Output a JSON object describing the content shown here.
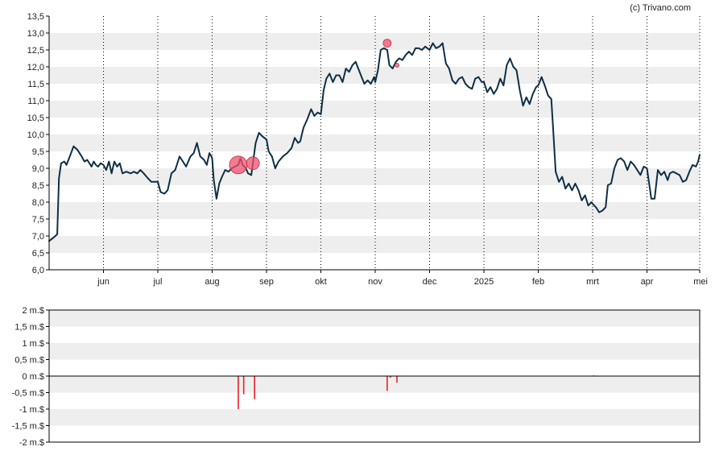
{
  "credit": "(c) Trivano.com",
  "colors": {
    "line": "#0e2f44",
    "band": "#eeeeee",
    "marker": "#f0506e",
    "volume_bar": "#e8202a",
    "frame": "#000000",
    "vgrid": "#000000"
  },
  "chart_data": [
    {
      "type": "line",
      "x_tick_labels": [
        "jun",
        "jul",
        "aug",
        "sep",
        "okt",
        "nov",
        "dec",
        "2025",
        "feb",
        "mrt",
        "apr",
        "mei"
      ],
      "x_tick_pos": [
        1.0,
        2.0,
        3.0,
        4.0,
        5.0,
        6.0,
        7.0,
        8.0,
        9.0,
        10.0,
        11.0,
        11.97
      ],
      "y_tick_labels": [
        "6,0",
        "6,5",
        "7,0",
        "7,5",
        "8,0",
        "8,5",
        "9,0",
        "9,5",
        "10,0",
        "10,5",
        "11,0",
        "11,5",
        "12,0",
        "12,5",
        "13,0",
        "13,5"
      ],
      "ylim": [
        6.0,
        13.5
      ],
      "xlim": [
        0.0,
        11.97
      ],
      "grid": "horizontal bands, dotted vertical lines at month ticks",
      "series": [
        {
          "points": [
            [
              0.0,
              6.85
            ],
            [
              0.08,
              6.95
            ],
            [
              0.15,
              7.05
            ],
            [
              0.18,
              8.7
            ],
            [
              0.22,
              9.15
            ],
            [
              0.28,
              9.2
            ],
            [
              0.32,
              9.1
            ],
            [
              0.38,
              9.35
            ],
            [
              0.45,
              9.65
            ],
            [
              0.52,
              9.55
            ],
            [
              0.6,
              9.35
            ],
            [
              0.65,
              9.2
            ],
            [
              0.7,
              9.25
            ],
            [
              0.78,
              9.05
            ],
            [
              0.82,
              9.2
            ],
            [
              0.86,
              9.1
            ],
            [
              0.9,
              9.05
            ],
            [
              0.95,
              9.15
            ],
            [
              1.0,
              9.1
            ],
            [
              1.05,
              8.95
            ],
            [
              1.1,
              9.2
            ],
            [
              1.15,
              8.85
            ],
            [
              1.2,
              9.2
            ],
            [
              1.25,
              9.05
            ],
            [
              1.3,
              9.15
            ],
            [
              1.35,
              8.85
            ],
            [
              1.42,
              8.9
            ],
            [
              1.5,
              8.85
            ],
            [
              1.56,
              8.9
            ],
            [
              1.62,
              8.85
            ],
            [
              1.68,
              8.95
            ],
            [
              1.74,
              8.85
            ],
            [
              1.82,
              8.7
            ],
            [
              1.88,
              8.6
            ],
            [
              1.95,
              8.6
            ],
            [
              2.0,
              8.6
            ],
            [
              2.05,
              8.3
            ],
            [
              2.12,
              8.25
            ],
            [
              2.18,
              8.35
            ],
            [
              2.25,
              8.85
            ],
            [
              2.32,
              8.95
            ],
            [
              2.4,
              9.35
            ],
            [
              2.46,
              9.2
            ],
            [
              2.52,
              9.05
            ],
            [
              2.6,
              9.35
            ],
            [
              2.66,
              9.45
            ],
            [
              2.72,
              9.75
            ],
            [
              2.78,
              9.35
            ],
            [
              2.85,
              9.25
            ],
            [
              2.9,
              9.1
            ],
            [
              2.95,
              9.45
            ],
            [
              3.0,
              9.3
            ],
            [
              3.03,
              8.65
            ],
            [
              3.08,
              8.1
            ],
            [
              3.13,
              8.55
            ],
            [
              3.18,
              8.75
            ],
            [
              3.24,
              8.95
            ],
            [
              3.3,
              8.9
            ],
            [
              3.36,
              9.0
            ],
            [
              3.42,
              9.05
            ],
            [
              3.48,
              9.1
            ],
            [
              3.52,
              9.3
            ],
            [
              3.56,
              9.1
            ],
            [
              3.62,
              9.0
            ],
            [
              3.66,
              8.85
            ],
            [
              3.72,
              8.8
            ],
            [
              3.8,
              9.75
            ],
            [
              3.86,
              10.05
            ],
            [
              3.92,
              9.95
            ],
            [
              4.0,
              9.85
            ],
            [
              4.04,
              9.5
            ],
            [
              4.1,
              9.35
            ],
            [
              4.16,
              9.0
            ],
            [
              4.22,
              9.2
            ],
            [
              4.3,
              9.35
            ],
            [
              4.38,
              9.45
            ],
            [
              4.46,
              9.6
            ],
            [
              4.52,
              9.9
            ],
            [
              4.58,
              9.75
            ],
            [
              4.62,
              9.8
            ],
            [
              4.68,
              10.2
            ],
            [
              4.75,
              10.45
            ],
            [
              4.82,
              10.75
            ],
            [
              4.88,
              10.55
            ],
            [
              4.94,
              10.65
            ],
            [
              5.0,
              10.6
            ],
            [
              5.05,
              11.3
            ],
            [
              5.1,
              11.65
            ],
            [
              5.16,
              11.8
            ],
            [
              5.22,
              11.55
            ],
            [
              5.28,
              11.75
            ],
            [
              5.34,
              11.75
            ],
            [
              5.4,
              11.55
            ],
            [
              5.46,
              11.95
            ],
            [
              5.52,
              11.85
            ],
            [
              5.58,
              12.05
            ],
            [
              5.64,
              12.15
            ],
            [
              5.7,
              11.9
            ],
            [
              5.75,
              11.7
            ],
            [
              5.8,
              11.5
            ],
            [
              5.86,
              11.6
            ],
            [
              5.92,
              11.5
            ],
            [
              5.98,
              11.7
            ],
            [
              6.0,
              11.55
            ],
            [
              6.05,
              11.9
            ],
            [
              6.1,
              12.5
            ],
            [
              6.16,
              12.55
            ],
            [
              6.22,
              12.5
            ],
            [
              6.26,
              12.05
            ],
            [
              6.32,
              11.95
            ],
            [
              6.38,
              12.15
            ],
            [
              6.44,
              12.25
            ],
            [
              6.5,
              12.2
            ],
            [
              6.56,
              12.35
            ],
            [
              6.62,
              12.45
            ],
            [
              6.68,
              12.35
            ],
            [
              6.74,
              12.55
            ],
            [
              6.8,
              12.55
            ],
            [
              6.86,
              12.5
            ],
            [
              6.92,
              12.6
            ],
            [
              7.0,
              12.5
            ],
            [
              7.06,
              12.7
            ],
            [
              7.12,
              12.55
            ],
            [
              7.18,
              12.6
            ],
            [
              7.24,
              12.7
            ],
            [
              7.3,
              12.1
            ],
            [
              7.36,
              11.95
            ],
            [
              7.42,
              11.6
            ],
            [
              7.48,
              11.5
            ],
            [
              7.54,
              11.65
            ],
            [
              7.6,
              11.7
            ],
            [
              7.66,
              11.5
            ],
            [
              7.72,
              11.4
            ],
            [
              7.78,
              11.35
            ],
            [
              7.84,
              11.65
            ],
            [
              7.9,
              11.7
            ],
            [
              7.96,
              11.55
            ],
            [
              8.0,
              11.55
            ],
            [
              8.06,
              11.25
            ],
            [
              8.12,
              11.4
            ],
            [
              8.18,
              11.2
            ],
            [
              8.24,
              11.35
            ],
            [
              8.3,
              11.65
            ],
            [
              8.36,
              11.45
            ],
            [
              8.42,
              12.05
            ],
            [
              8.48,
              12.25
            ],
            [
              8.54,
              12.0
            ],
            [
              8.6,
              11.9
            ],
            [
              8.66,
              11.3
            ],
            [
              8.72,
              10.85
            ],
            [
              8.78,
              11.1
            ],
            [
              8.84,
              10.9
            ],
            [
              8.9,
              11.2
            ],
            [
              8.96,
              11.4
            ],
            [
              9.0,
              11.45
            ],
            [
              9.06,
              11.7
            ],
            [
              9.12,
              11.45
            ],
            [
              9.18,
              11.15
            ],
            [
              9.24,
              11.05
            ],
            [
              9.28,
              10.0
            ],
            [
              9.32,
              8.9
            ],
            [
              9.38,
              8.6
            ],
            [
              9.44,
              8.75
            ],
            [
              9.5,
              8.4
            ],
            [
              9.56,
              8.55
            ],
            [
              9.62,
              8.35
            ],
            [
              9.68,
              8.55
            ],
            [
              9.74,
              8.35
            ],
            [
              9.8,
              8.05
            ],
            [
              9.86,
              8.2
            ],
            [
              9.92,
              7.9
            ],
            [
              9.98,
              8.0
            ],
            [
              10.0,
              7.95
            ],
            [
              10.06,
              7.85
            ],
            [
              10.12,
              7.7
            ],
            [
              10.18,
              7.75
            ],
            [
              10.24,
              7.85
            ],
            [
              10.28,
              8.5
            ],
            [
              10.34,
              8.55
            ],
            [
              10.4,
              9.0
            ],
            [
              10.46,
              9.25
            ],
            [
              10.52,
              9.3
            ],
            [
              10.58,
              9.2
            ],
            [
              10.64,
              8.95
            ],
            [
              10.7,
              9.2
            ],
            [
              10.76,
              9.1
            ],
            [
              10.82,
              8.95
            ],
            [
              10.88,
              8.8
            ],
            [
              10.94,
              9.05
            ],
            [
              11.0,
              9.0
            ],
            [
              11.04,
              8.55
            ],
            [
              11.08,
              8.1
            ],
            [
              11.14,
              8.1
            ],
            [
              11.2,
              8.95
            ],
            [
              11.26,
              8.8
            ],
            [
              11.32,
              8.9
            ],
            [
              11.38,
              8.65
            ],
            [
              11.42,
              8.85
            ],
            [
              11.48,
              8.9
            ],
            [
              11.54,
              8.85
            ],
            [
              11.6,
              8.8
            ],
            [
              11.66,
              8.6
            ],
            [
              11.72,
              8.65
            ],
            [
              11.78,
              8.9
            ],
            [
              11.84,
              9.1
            ],
            [
              11.9,
              9.05
            ],
            [
              11.94,
              9.2
            ],
            [
              11.97,
              9.4
            ]
          ]
        }
      ],
      "markers": [
        {
          "x": 3.48,
          "y": 9.1,
          "size": "large"
        },
        {
          "x": 3.75,
          "y": 9.15,
          "size": "medium"
        },
        {
          "x": 6.22,
          "y": 12.7,
          "size": "small"
        },
        {
          "x": 6.4,
          "y": 12.05,
          "size": "tiny"
        }
      ]
    },
    {
      "type": "bar",
      "y_tick_labels": [
        "2 m.$",
        "1,5 m.$",
        "1 m.$",
        "0,5 m.$",
        "0 m.$",
        "-0,5 m.$",
        "-1 m.$",
        "-1,5 m.$",
        "-2 m.$"
      ],
      "ylim": [
        -2.0,
        2.0
      ],
      "xlim": [
        0.0,
        11.97
      ],
      "bars": [
        {
          "x": 3.48,
          "value": -1.0
        },
        {
          "x": 3.58,
          "value": -0.55
        },
        {
          "x": 3.78,
          "value": -0.7
        },
        {
          "x": 6.22,
          "value": -0.45
        },
        {
          "x": 6.28,
          "value": -0.05
        },
        {
          "x": 6.4,
          "value": -0.2
        },
        {
          "x": 10.02,
          "value": 0.02
        }
      ]
    }
  ]
}
